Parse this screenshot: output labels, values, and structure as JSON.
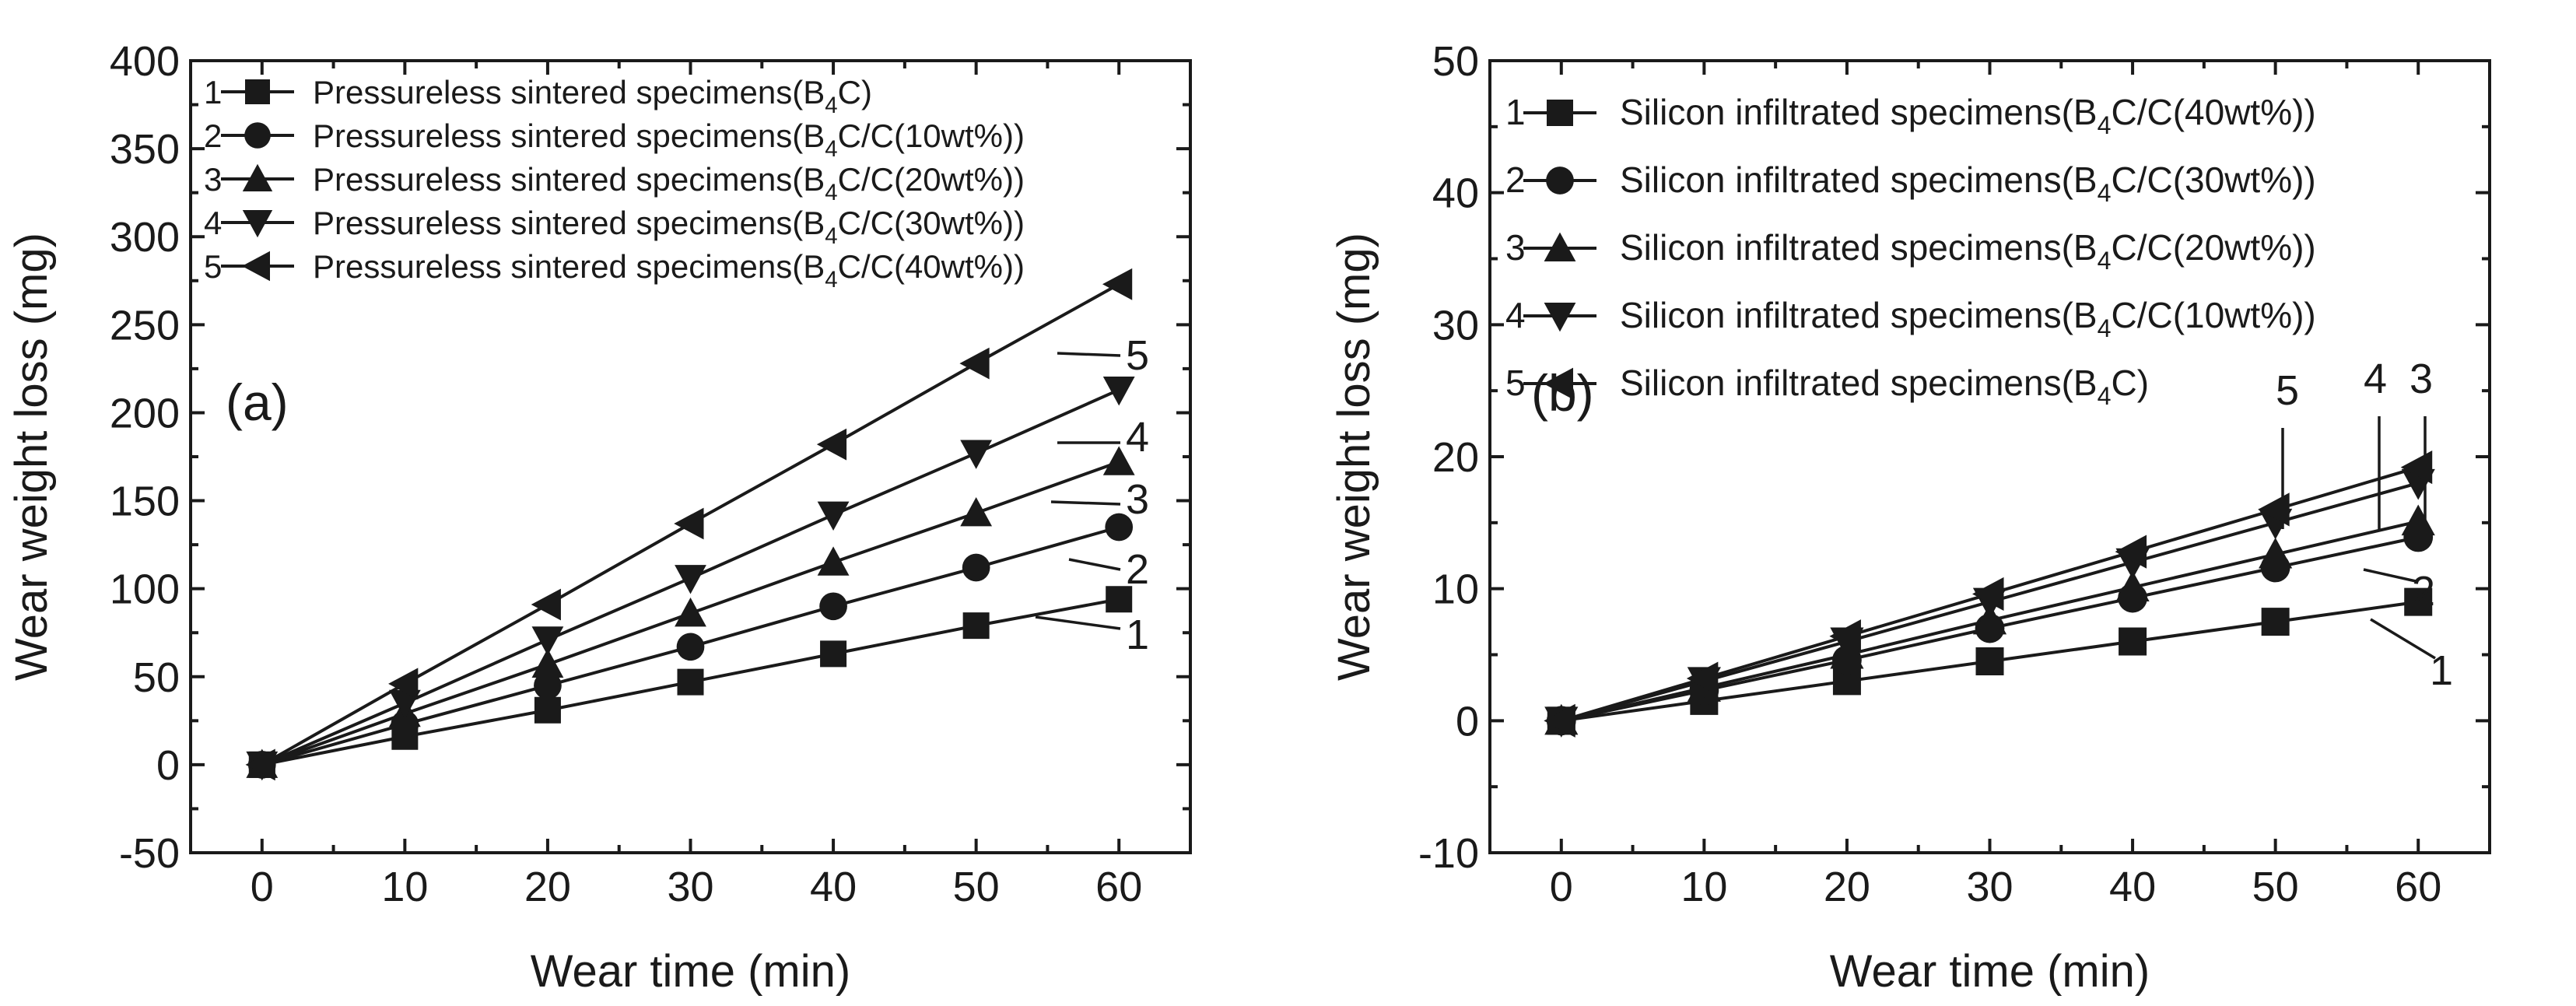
{
  "chart_data": [
    {
      "type": "line",
      "panel_label": "(a)",
      "xlabel": "Wear time (min)",
      "ylabel": "Wear weight loss (mg)",
      "x": [
        0,
        10,
        20,
        30,
        40,
        50,
        60
      ],
      "xlim": [
        -5,
        65
      ],
      "ylim": [
        -50,
        400
      ],
      "xticks": [
        "0",
        "10",
        "20",
        "30",
        "40",
        "50",
        "60"
      ],
      "yticks": [
        "-50",
        "0",
        "50",
        "100",
        "150",
        "200",
        "250",
        "300",
        "350",
        "400"
      ],
      "legend_position": "top-left",
      "series": [
        {
          "id": "1",
          "marker": "square",
          "prefix": "Pressureless sintered specimens(B",
          "sub": "4",
          "suffix": "C)",
          "values": [
            0,
            16,
            31,
            47,
            63,
            79,
            94
          ]
        },
        {
          "id": "2",
          "marker": "circle",
          "prefix": "Pressureless sintered specimens(B",
          "sub": "4",
          "suffix": "C/C(10wt%))",
          "values": [
            0,
            23,
            45,
            67,
            90,
            112,
            135
          ]
        },
        {
          "id": "3",
          "marker": "triangle-up",
          "prefix": "Pressureless sintered specimens(B",
          "sub": "4",
          "suffix": "C/C(20wt%))",
          "values": [
            0,
            29,
            57,
            86,
            115,
            143,
            172
          ]
        },
        {
          "id": "4",
          "marker": "triangle-down",
          "prefix": "Pressureless sintered specimens(B",
          "sub": "4",
          "suffix": "C/C(30wt%))",
          "values": [
            0,
            35,
            71,
            106,
            142,
            177,
            213
          ]
        },
        {
          "id": "5",
          "marker": "triangle-left",
          "prefix": "Pressureless sintered specimens(B",
          "sub": "4",
          "suffix": "C/C(40wt%))",
          "values": [
            0,
            46,
            91,
            137,
            182,
            228,
            273
          ]
        }
      ]
    },
    {
      "type": "line",
      "panel_label": "(b)",
      "xlabel": "Wear time (min)",
      "ylabel": "Wear weight loss (mg)",
      "x": [
        0,
        10,
        20,
        30,
        40,
        50,
        60
      ],
      "xlim": [
        -5,
        65
      ],
      "ylim": [
        -10,
        50
      ],
      "xticks": [
        "0",
        "10",
        "20",
        "30",
        "40",
        "50",
        "60"
      ],
      "yticks": [
        "-10",
        "0",
        "10",
        "20",
        "30",
        "40",
        "50"
      ],
      "legend_position": "top-left",
      "series": [
        {
          "id": "1",
          "marker": "square",
          "prefix": "Silicon infiltrated specimens(B",
          "sub": "4",
          "suffix": "C/C(40wt%))",
          "values": [
            0,
            1.5,
            3.0,
            4.5,
            6.0,
            7.5,
            9.0
          ]
        },
        {
          "id": "2",
          "marker": "circle",
          "prefix": "Silicon infiltrated specimens(B",
          "sub": "4",
          "suffix": "C/C(30wt%))",
          "values": [
            0,
            2.3,
            4.6,
            7.0,
            9.3,
            11.6,
            13.9
          ]
        },
        {
          "id": "3",
          "marker": "triangle-up",
          "prefix": "Silicon infiltrated specimens(B",
          "sub": "4",
          "suffix": "C/C(20wt%))",
          "values": [
            0,
            2.5,
            5.0,
            7.6,
            10.1,
            12.6,
            15.1
          ]
        },
        {
          "id": "4",
          "marker": "triangle-down",
          "prefix": "Silicon infiltrated specimens(B",
          "sub": "4",
          "suffix": "C/C(10wt%))",
          "values": [
            0,
            3.0,
            6.0,
            9.0,
            12.0,
            15.0,
            18.0
          ]
        },
        {
          "id": "5",
          "marker": "triangle-left",
          "prefix": "Silicon infiltrated specimens(B",
          "sub": "4",
          "suffix": "C)",
          "values": [
            0,
            3.2,
            6.4,
            9.6,
            12.8,
            16.0,
            19.2
          ]
        }
      ]
    }
  ]
}
